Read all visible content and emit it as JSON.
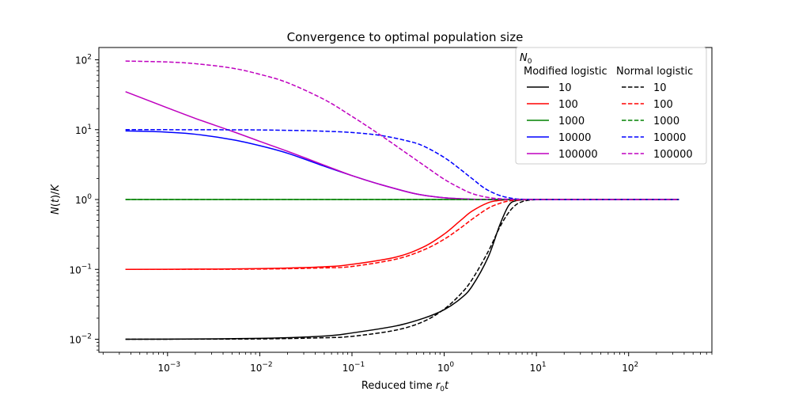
{
  "chart_data": {
    "type": "line",
    "title": "Convergence to optimal population size",
    "xlabel": {
      "main": "Reduced time ",
      "var": "r",
      "sub": "0",
      "tail": "t"
    },
    "ylabel": {
      "pre": "N",
      "mid": "(",
      "var": "t",
      "post": ")/",
      "var2": "K"
    },
    "xscale": "log",
    "yscale": "log",
    "xlim": [
      0.00018,
      800
    ],
    "ylim": [
      0.0065,
      150
    ],
    "x_ticks": [
      {
        "value": 0.001,
        "base": "10",
        "exp": "−3"
      },
      {
        "value": 0.01,
        "base": "10",
        "exp": "−2"
      },
      {
        "value": 0.1,
        "base": "10",
        "exp": "−1"
      },
      {
        "value": 1,
        "base": "10",
        "exp": "0"
      },
      {
        "value": 10,
        "base": "10",
        "exp": "1"
      },
      {
        "value": 100,
        "base": "10",
        "exp": "2"
      }
    ],
    "y_ticks": [
      {
        "value": 0.01,
        "base": "10",
        "exp": "−2"
      },
      {
        "value": 0.1,
        "base": "10",
        "exp": "−1"
      },
      {
        "value": 1,
        "base": "10",
        "exp": "0"
      },
      {
        "value": 10,
        "base": "10",
        "exp": "1"
      },
      {
        "value": 100,
        "base": "10",
        "exp": "2"
      }
    ],
    "grid": false,
    "legend": {
      "placement": "top-right",
      "title": {
        "var": "N",
        "sub": "0"
      },
      "columns": [
        "Modified logistic",
        "Normal logistic"
      ]
    },
    "series": [
      {
        "name": "10",
        "group": "Modified logistic",
        "color": "#000000",
        "style": "solid",
        "x": [
          0.00035,
          0.001,
          0.01,
          0.05,
          0.1,
          0.3,
          0.6,
          1,
          1.5,
          2,
          3,
          4,
          5,
          6,
          8,
          10,
          20,
          100,
          350
        ],
        "y": [
          0.01,
          0.01003,
          0.0103,
          0.0111,
          0.0123,
          0.0155,
          0.02,
          0.0265,
          0.038,
          0.057,
          0.15,
          0.43,
          0.82,
          0.96,
          0.995,
          1,
          1,
          1,
          1
        ]
      },
      {
        "name": "100",
        "group": "Modified logistic",
        "color": "#ff0000",
        "style": "solid",
        "x": [
          0.00035,
          0.001,
          0.01,
          0.05,
          0.1,
          0.3,
          0.6,
          1,
          1.5,
          2,
          3,
          4,
          5,
          7,
          10,
          100,
          350
        ],
        "y": [
          0.1,
          0.1003,
          0.1025,
          0.109,
          0.118,
          0.15,
          0.21,
          0.32,
          0.5,
          0.68,
          0.9,
          0.97,
          0.99,
          1,
          1,
          1,
          1
        ]
      },
      {
        "name": "1000",
        "group": "Modified logistic",
        "color": "#008000",
        "style": "solid",
        "x": [
          0.00035,
          350
        ],
        "y": [
          1,
          1
        ]
      },
      {
        "name": "10000",
        "group": "Modified logistic",
        "color": "#0000ff",
        "style": "solid",
        "x": [
          0.00035,
          0.0007,
          0.001,
          0.002,
          0.005,
          0.01,
          0.02,
          0.05,
          0.1,
          0.2,
          0.5,
          1,
          2,
          3,
          5,
          10,
          100,
          350
        ],
        "y": [
          9.6,
          9.4,
          9.2,
          8.6,
          7.2,
          5.9,
          4.6,
          3.0,
          2.2,
          1.65,
          1.2,
          1.06,
          1.01,
          1.005,
          1,
          1,
          1,
          1
        ]
      },
      {
        "name": "100000",
        "group": "Modified logistic",
        "color": "#bf00bf",
        "style": "solid",
        "x": [
          0.00035,
          0.001,
          0.002,
          0.005,
          0.01,
          0.02,
          0.05,
          0.1,
          0.2,
          0.5,
          1,
          2,
          3,
          5,
          10,
          100,
          350
        ],
        "y": [
          35,
          20.5,
          14.5,
          9.5,
          6.8,
          4.9,
          3.1,
          2.2,
          1.65,
          1.2,
          1.06,
          1.01,
          1.005,
          1,
          1,
          1,
          1
        ]
      },
      {
        "name": "10",
        "group": "Normal logistic",
        "color": "#000000",
        "style": "dashed",
        "x": [
          0.00035,
          0.001,
          0.01,
          0.05,
          0.1,
          0.3,
          0.6,
          1,
          1.5,
          2,
          3,
          4,
          5,
          6,
          7,
          8,
          10,
          15,
          100,
          350
        ],
        "y": [
          0.01,
          0.01001,
          0.0101,
          0.0105,
          0.011,
          0.0135,
          0.018,
          0.027,
          0.044,
          0.071,
          0.18,
          0.4,
          0.65,
          0.84,
          0.93,
          0.97,
          0.995,
          1,
          1,
          1
        ]
      },
      {
        "name": "100",
        "group": "Normal logistic",
        "color": "#ff0000",
        "style": "dashed",
        "x": [
          0.00035,
          0.001,
          0.01,
          0.05,
          0.1,
          0.3,
          0.6,
          1,
          1.5,
          2,
          3,
          4,
          5,
          7,
          10,
          100,
          350
        ],
        "y": [
          0.1,
          0.1001,
          0.101,
          0.105,
          0.11,
          0.14,
          0.19,
          0.27,
          0.39,
          0.52,
          0.75,
          0.88,
          0.95,
          0.99,
          1,
          1,
          1
        ]
      },
      {
        "name": "1000",
        "group": "Normal logistic",
        "color": "#008000",
        "style": "dashed",
        "x": [
          0.00035,
          350
        ],
        "y": [
          1,
          1
        ]
      },
      {
        "name": "10000",
        "group": "Normal logistic",
        "color": "#0000ff",
        "style": "dashed",
        "x": [
          0.00035,
          0.001,
          0.005,
          0.01,
          0.03,
          0.05,
          0.1,
          0.2,
          0.4,
          0.6,
          1,
          1.5,
          2,
          3,
          5,
          10,
          100,
          350
        ],
        "y": [
          10,
          9.99,
          9.95,
          9.9,
          9.7,
          9.5,
          9.1,
          8.3,
          6.9,
          5.8,
          4.0,
          2.7,
          2.0,
          1.35,
          1.06,
          1,
          1,
          1
        ]
      },
      {
        "name": "100000",
        "group": "Normal logistic",
        "color": "#bf00bf",
        "style": "dashed",
        "x": [
          0.00035,
          0.001,
          0.002,
          0.005,
          0.01,
          0.02,
          0.05,
          0.1,
          0.2,
          0.4,
          0.6,
          1,
          1.5,
          2,
          3,
          5,
          10,
          100,
          350
        ],
        "y": [
          96,
          93,
          88,
          76,
          62,
          47,
          27,
          15.5,
          8.5,
          4.5,
          3.1,
          1.95,
          1.45,
          1.22,
          1.07,
          1.01,
          1,
          1,
          1
        ]
      }
    ]
  }
}
